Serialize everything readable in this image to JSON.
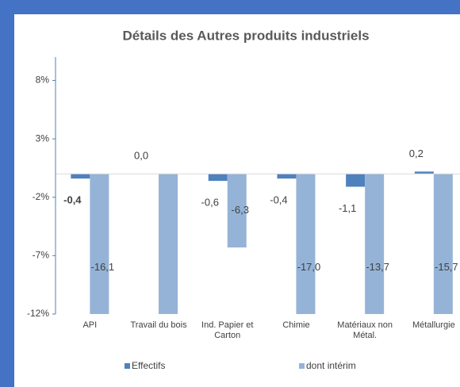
{
  "chart_data": {
    "type": "bar",
    "title": "Détails des Autres produits industriels",
    "categories": [
      "API",
      "Travail du bois",
      "Ind. Papier et Carton",
      "Chimie",
      "Matériaux non Métal.",
      "Métallurgie"
    ],
    "series": [
      {
        "name": "Effectifs",
        "color": "#4f81bd",
        "values": [
          -0.4,
          0.0,
          -0.6,
          -0.4,
          -1.1,
          0.2
        ],
        "value_labels": [
          "-0,4",
          "0,0",
          "-0,6",
          "-0,4",
          "-1,1",
          "0,2"
        ]
      },
      {
        "name": "dont intérim",
        "color": "#95b3d7",
        "values": [
          -16.1,
          -12,
          -6.3,
          -17.0,
          -13.7,
          -15.7
        ],
        "value_labels": [
          "-16,1",
          null,
          "-6,3",
          "-17,0",
          "-13,7",
          "-15,7"
        ]
      }
    ],
    "ylim": [
      -12,
      10
    ],
    "yticks": [
      {
        "value": 8,
        "label": "8%"
      },
      {
        "value": 3,
        "label": "3%"
      },
      {
        "value": -2,
        "label": "-2%"
      },
      {
        "value": -7,
        "label": "-7%"
      },
      {
        "value": -12,
        "label": "-12%"
      }
    ],
    "legend": "bottom"
  }
}
